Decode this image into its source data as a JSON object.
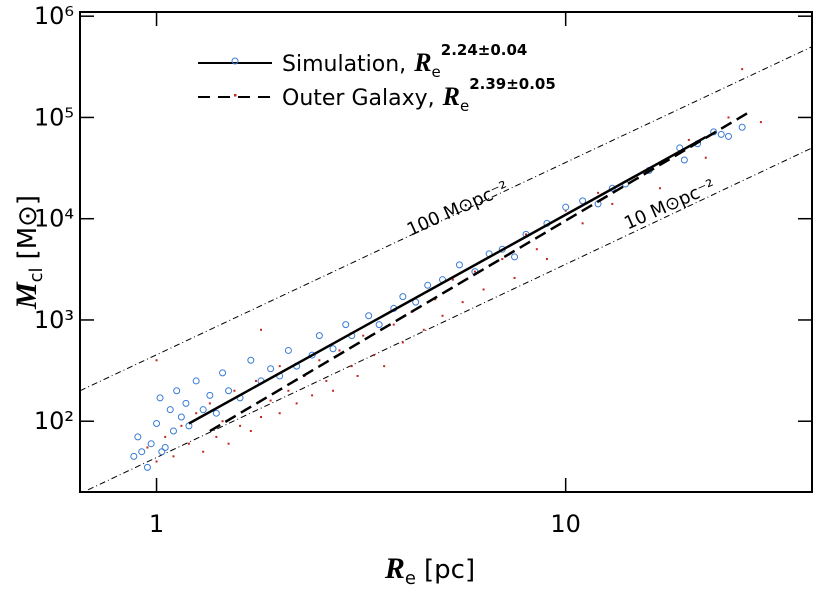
{
  "chart_data": {
    "type": "scatter",
    "log_x": true,
    "log_y": true,
    "xlim": [
      0.65,
      40
    ],
    "ylim": [
      20,
      1100000
    ],
    "xticks": [
      1,
      10
    ],
    "yticks": [
      {
        "value": 100,
        "label": "10²"
      },
      {
        "value": 1000,
        "label": "10³"
      },
      {
        "value": 10000,
        "label": "10⁴"
      },
      {
        "value": 100000,
        "label": "10⁵"
      },
      {
        "value": 1000000,
        "label": "10⁶"
      }
    ],
    "x_label": {
      "symbol": "R",
      "subscript": "e",
      "unit": "[pc]"
    },
    "y_label": {
      "symbol": "M",
      "subscript": "cl",
      "unit": "[M⊙]"
    },
    "series": [
      {
        "name": "Simulation,",
        "fit_symbol": "R",
        "fit_subscript": "e",
        "fit_exponent": "2.24±0.04",
        "color": "#3a7bd5",
        "marker": "circle",
        "fit_style": "solid",
        "x": [
          0.88,
          0.9,
          0.95,
          0.97,
          1.0,
          1.02,
          1.05,
          1.08,
          1.1,
          1.12,
          1.15,
          1.18,
          1.2,
          1.25,
          1.3,
          1.35,
          1.4,
          1.45,
          1.5,
          1.6,
          1.7,
          1.8,
          1.9,
          2.0,
          2.1,
          2.2,
          2.4,
          2.5,
          2.7,
          2.9,
          3.0,
          3.3,
          3.5,
          3.8,
          4.0,
          4.3,
          4.6,
          5.0,
          5.5,
          6.0,
          6.5,
          7.0,
          7.5,
          8.0,
          9.0,
          10.0,
          11,
          12,
          13,
          14,
          16,
          19,
          19.5,
          21,
          23,
          24,
          25,
          27,
          1.03,
          0.92
        ],
        "values": [
          45,
          70,
          35,
          60,
          95,
          170,
          55,
          130,
          80,
          200,
          110,
          150,
          90,
          250,
          130,
          180,
          120,
          300,
          200,
          170,
          400,
          250,
          330,
          280,
          500,
          350,
          450,
          700,
          520,
          900,
          700,
          1100,
          900,
          1300,
          1700,
          1500,
          2200,
          2500,
          3500,
          3000,
          4500,
          5000,
          4200,
          7000,
          9000,
          13000,
          15000,
          14000,
          20000,
          22000,
          30000,
          50000,
          38000,
          55000,
          72000,
          68000,
          65000,
          80000,
          50,
          50
        ],
        "fit_x": [
          1.2,
          22
        ],
        "fit_values": [
          95,
          64000
        ]
      },
      {
        "name": "Outer Galaxy,",
        "fit_symbol": "R",
        "fit_subscript": "e",
        "fit_exponent": "2.39±0.05",
        "color": "#c0281c",
        "marker": "dot",
        "fit_style": "dashed",
        "x": [
          0.95,
          1.0,
          1.05,
          1.1,
          1.15,
          1.2,
          1.25,
          1.3,
          1.35,
          1.4,
          1.45,
          1.5,
          1.55,
          1.6,
          1.65,
          1.7,
          1.75,
          1.8,
          1.9,
          2.0,
          2.0,
          2.1,
          2.2,
          2.3,
          2.4,
          2.5,
          2.6,
          2.7,
          2.8,
          3.0,
          3.1,
          3.2,
          3.4,
          3.6,
          3.8,
          4.0,
          4.2,
          4.5,
          4.8,
          5.0,
          5.3,
          5.6,
          6.0,
          6.3,
          7.0,
          7.5,
          8,
          8.5,
          9,
          10,
          11,
          12,
          13,
          15,
          17,
          20,
          22,
          25,
          27,
          30,
          1.0,
          1.8
        ],
        "values": [
          55,
          40,
          70,
          45,
          90,
          60,
          120,
          50,
          150,
          70,
          100,
          60,
          200,
          90,
          130,
          80,
          250,
          110,
          160,
          120,
          350,
          200,
          150,
          280,
          180,
          400,
          250,
          200,
          500,
          350,
          280,
          700,
          450,
          350,
          900,
          600,
          1200,
          800,
          1600,
          1100,
          2500,
          1500,
          3000,
          2000,
          4000,
          2600,
          7000,
          5000,
          4000,
          12000,
          9000,
          18000,
          14000,
          25000,
          20000,
          60000,
          40000,
          100000,
          300000,
          90000,
          400,
          800
        ],
        "fit_x": [
          1.35,
          28
        ],
        "fit_values": [
          80,
          112000
        ]
      }
    ],
    "reference_lines": [
      {
        "label": "100 M⊙pc⁻²",
        "x": [
          0.65,
          40
        ],
        "values": [
          200,
          500000
        ]
      },
      {
        "label": "10 M⊙pc⁻²",
        "x": [
          0.68,
          40
        ],
        "values": [
          21,
          50000
        ]
      }
    ]
  }
}
